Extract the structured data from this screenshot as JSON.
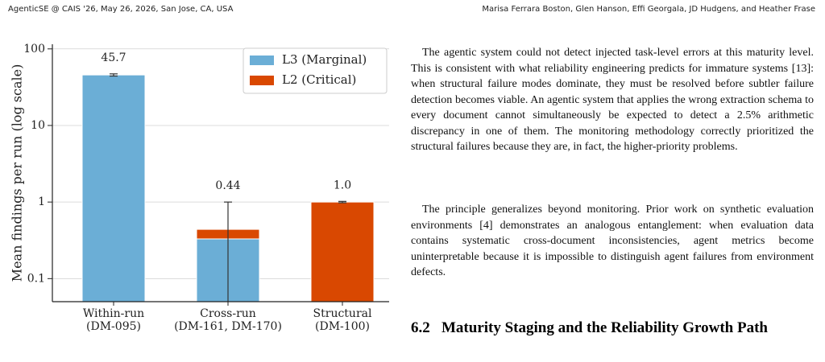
{
  "header": {
    "left": "AgenticSE @ CAIS '26, May 26, 2026, San Jose, CA, USA",
    "right": "Marisa Ferrara Boston, Glen Hanson, Effi Georgala, JD Hudgens, and Heather Frase"
  },
  "chart_data": {
    "type": "bar",
    "stacked": true,
    "ylabel": "Mean findings per run (log scale)",
    "categories": [
      "Within-run",
      "Cross-run",
      "Structural"
    ],
    "category_notes": [
      "(DM-095)",
      "(DM-161, DM-170)",
      "(DM-100)"
    ],
    "series": [
      {
        "name": "L3 (Marginal)",
        "color": "#6baed6",
        "values": [
          45.7,
          0.33,
          null
        ]
      },
      {
        "name": "L2 (Critical)",
        "color": "#d94801",
        "values": [
          null,
          0.11,
          1.0
        ]
      }
    ],
    "totals": [
      45.7,
      0.44,
      1.0
    ],
    "value_labels": [
      "45.7",
      "0.44",
      "1.0"
    ],
    "errors": [
      1.5,
      0.56,
      0.02
    ],
    "log_y": true,
    "ylim": [
      0.05,
      115
    ],
    "yticks": [
      0.1,
      1,
      10,
      100
    ],
    "grid": true,
    "legend": "upper-right"
  },
  "body": {
    "paragraphs": [
      "The agentic system could not detect injected task-level errors at this maturity level. This is consistent with what reliability engineering predicts for immature systems [13]: when structural failure modes dominate, they must be resolved before subtler failure detection becomes viable. An agentic system that applies the wrong extraction schema to every document cannot simultaneously be expected to detect a 2.5% arithmetic discrepancy in one of them. The monitoring methodology correctly prioritized the structural failures because they are, in fact, the higher-priority problems.",
      "The principle generalizes beyond monitoring. Prior work on synthetic evaluation environments [4] demonstrates an analogous entanglement: when evaluation data contains systematic cross-document inconsistencies, agent metrics become uninterpretable because it is impossible to distinguish agent failures from environment defects."
    ],
    "section_number": "6.2",
    "section_title": "Maturity Staging and the Reliability Growth Path"
  }
}
